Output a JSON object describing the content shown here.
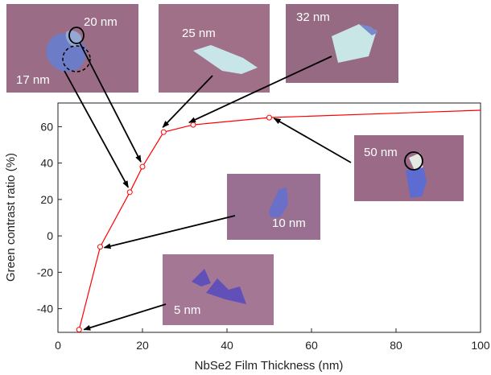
{
  "chart_data": {
    "type": "line",
    "xlabel": "NbSe2 Film Thickness (nm)",
    "ylabel": "Green contrast ratio (%)",
    "xlim": [
      0,
      100
    ],
    "ylim": [
      -53,
      73
    ],
    "x_ticks": [
      0,
      20,
      40,
      60,
      80,
      100
    ],
    "y_ticks": [
      -40,
      -20,
      0,
      20,
      40,
      60
    ],
    "grid": false,
    "series": [
      {
        "color": "#ff0000",
        "x": [
          5,
          10,
          17,
          20,
          25,
          32,
          50,
          100
        ],
        "y": [
          -51.5,
          -6,
          24,
          38,
          57,
          61,
          65,
          69
        ],
        "markers_at": [
          5,
          10,
          17,
          20,
          25,
          32,
          50
        ]
      }
    ],
    "annotations": [
      "20 nm",
      "17 nm",
      "25 nm",
      "32 nm",
      "50 nm",
      "10 nm",
      "5 nm"
    ]
  },
  "colors": {
    "line": "#ff0000",
    "substrate": "#9c6a86",
    "flake_thick": "#c8e4e8",
    "flake_thin": "#5c5ab8",
    "arrow": "#000000"
  }
}
